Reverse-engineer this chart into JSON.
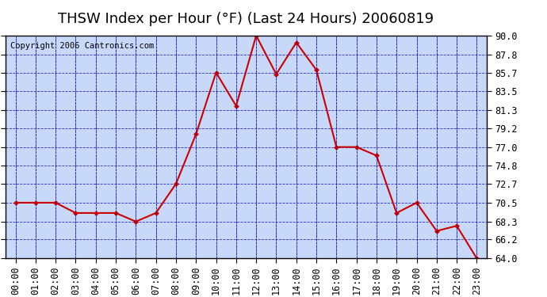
{
  "title": "THSW Index per Hour (°F) (Last 24 Hours) 20060819",
  "copyright": "Copyright 2006 Cantronics.com",
  "hours": [
    0,
    1,
    2,
    3,
    4,
    5,
    6,
    7,
    8,
    9,
    10,
    11,
    12,
    13,
    14,
    15,
    16,
    17,
    18,
    19,
    20,
    21,
    22,
    23
  ],
  "values": [
    70.5,
    70.5,
    70.5,
    69.3,
    69.3,
    69.3,
    68.3,
    69.3,
    72.7,
    78.5,
    85.7,
    81.8,
    90.0,
    85.5,
    89.2,
    86.0,
    77.0,
    77.0,
    76.0,
    69.3,
    70.5,
    67.2,
    67.8,
    64.0
  ],
  "ylim_min": 64.0,
  "ylim_max": 90.0,
  "yticks": [
    64.0,
    66.2,
    68.3,
    70.5,
    72.7,
    74.8,
    77.0,
    79.2,
    81.3,
    83.5,
    85.7,
    87.8,
    90.0
  ],
  "line_color": "#cc0000",
  "marker_color": "#cc0000",
  "bg_color": "#c8d8f8",
  "plot_bg": "#c8d8f8",
  "outer_bg": "#ffffff",
  "grid_color": "#0000cc",
  "title_color": "#000000",
  "copyright_color": "#000000",
  "title_fontsize": 13,
  "tick_fontsize": 8.5,
  "copyright_fontsize": 7.5
}
